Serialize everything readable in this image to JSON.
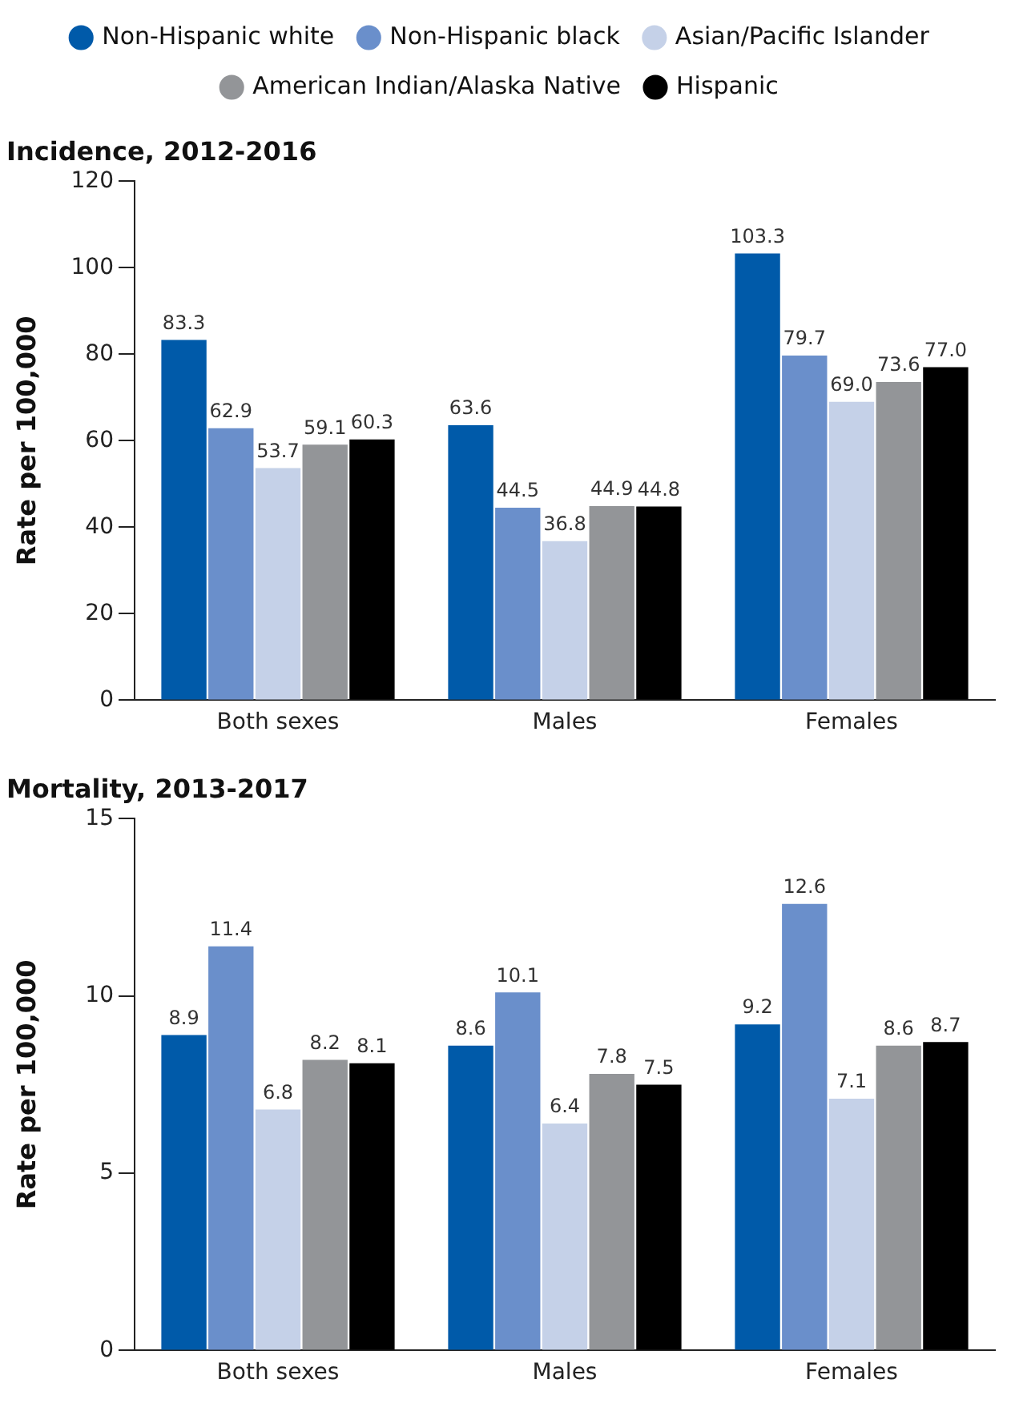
{
  "chart_data": [
    {
      "type": "bar",
      "title": "Incidence, 2012-2016",
      "ylabel": "Rate per 100,000",
      "categories": [
        "Both sexes",
        "Males",
        "Females"
      ],
      "ylim": [
        0,
        120
      ],
      "yticks": [
        0,
        20,
        40,
        60,
        80,
        100,
        120
      ],
      "grid": false,
      "legend": "top",
      "series": [
        {
          "name": "Non-Hispanic white",
          "color": "#005aa9",
          "values": [
            83.3,
            63.6,
            103.3
          ],
          "value_labels": [
            "83.3",
            "63.6",
            "103.3"
          ]
        },
        {
          "name": "Non-Hispanic black",
          "color": "#6a8fcb",
          "values": [
            62.9,
            44.5,
            79.7
          ],
          "value_labels": [
            "62.9",
            "44.5",
            "79.7"
          ]
        },
        {
          "name": "Asian/Pacific Islander",
          "color": "#c5d1e8",
          "values": [
            53.7,
            36.8,
            69.0
          ],
          "value_labels": [
            "53.7",
            "36.8",
            "69.0"
          ]
        },
        {
          "name": "American Indian/Alaska Native",
          "color": "#939598",
          "values": [
            59.1,
            44.9,
            73.6
          ],
          "value_labels": [
            "59.1",
            "44.9",
            "73.6"
          ]
        },
        {
          "name": "Hispanic",
          "color": "#000000",
          "values": [
            60.3,
            44.8,
            77.0
          ],
          "value_labels": [
            "60.3",
            "44.8",
            "77.0"
          ]
        }
      ]
    },
    {
      "type": "bar",
      "title": "Mortality, 2013-2017",
      "ylabel": "Rate per 100,000",
      "categories": [
        "Both sexes",
        "Males",
        "Females"
      ],
      "ylim": [
        0,
        15
      ],
      "yticks": [
        0,
        5,
        10,
        15
      ],
      "grid": false,
      "series": [
        {
          "color": "#005aa9",
          "values": [
            8.9,
            8.6,
            9.2
          ],
          "data_labels": true
        },
        {
          "color": "#6a8fcb",
          "values": [
            11.4,
            10.1,
            12.6
          ],
          "data_labels": true
        },
        {
          "color": "#c5d1e8",
          "values": [
            6.8,
            6.4,
            7.1
          ],
          "data_labels": true
        },
        {
          "color": "#939598",
          "values": [
            8.2,
            7.8,
            8.6
          ],
          "data_labels": true
        },
        {
          "color": "#000000",
          "values": [
            8.1,
            7.5,
            8.7
          ],
          "data_labels": true
        }
      ]
    }
  ]
}
